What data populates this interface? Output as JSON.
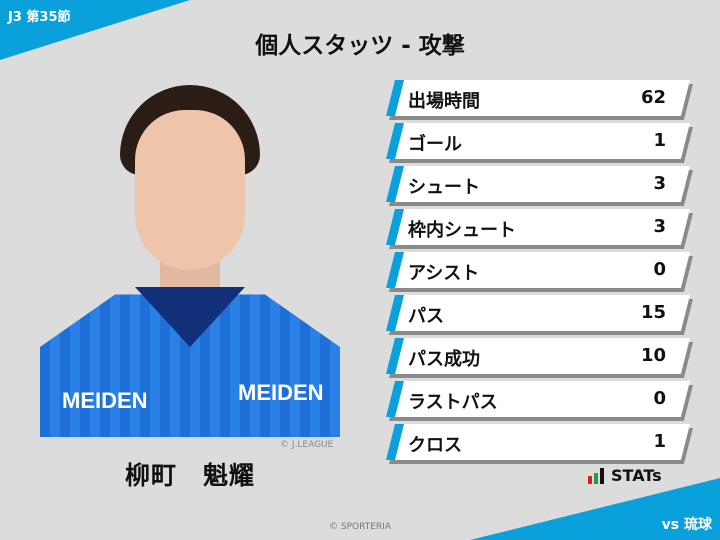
{
  "header": {
    "round": "J3 第35節",
    "title": "個人スタッツ - 攻撃",
    "opponent": "vs 琉球"
  },
  "player": {
    "name": "柳町　魁耀",
    "photo_credit": "© J.LEAGUE",
    "sponsor": "MEIDEN"
  },
  "stats": [
    {
      "label": "出場時間",
      "value": "62"
    },
    {
      "label": "ゴール",
      "value": "1"
    },
    {
      "label": "シュート",
      "value": "3"
    },
    {
      "label": "枠内シュート",
      "value": "3"
    },
    {
      "label": "アシスト",
      "value": "0"
    },
    {
      "label": "パス",
      "value": "15"
    },
    {
      "label": "パス成功",
      "value": "10"
    },
    {
      "label": "ラストパス",
      "value": "0"
    },
    {
      "label": "クロス",
      "value": "1"
    }
  ],
  "logo": {
    "text": "STATs",
    "colors": [
      "#e02020",
      "#20a040",
      "#111111"
    ]
  },
  "footer": {
    "copyright": "© SPORTERIA"
  },
  "colors": {
    "accent": "#0aa0dc"
  }
}
